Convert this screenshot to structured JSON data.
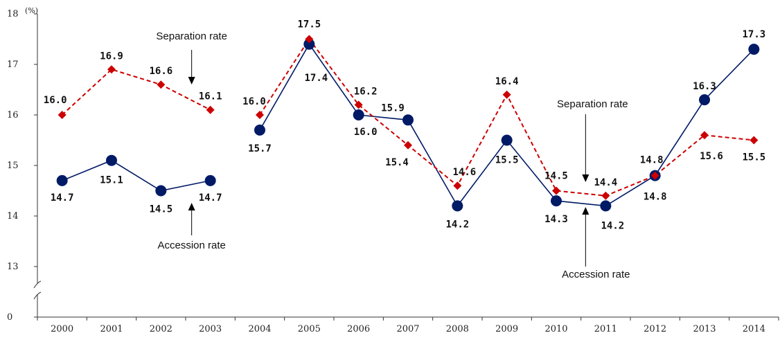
{
  "chart_data": {
    "type": "line",
    "y_unit": "(%)",
    "categories": [
      "2000",
      "2001",
      "2002",
      "2003",
      "2004",
      "2005",
      "2006",
      "2007",
      "2008",
      "2009",
      "2010",
      "2011",
      "2012",
      "2013",
      "2014"
    ],
    "y_ticks": [
      "0",
      "13",
      "14",
      "15",
      "16",
      "17",
      "18"
    ],
    "ylim": [
      13,
      18
    ],
    "y_axis_break": true,
    "grid": false,
    "segment_gap_after": "2003",
    "series": [
      {
        "key": "separation",
        "style": "dashed",
        "marker": "diamond",
        "color": "#cc0000",
        "values": [
          16.0,
          16.9,
          16.6,
          16.1,
          16.0,
          17.5,
          16.2,
          15.4,
          14.6,
          16.4,
          14.5,
          14.4,
          14.8,
          15.6,
          15.5
        ],
        "labels": [
          "16.0",
          "16.9",
          "16.6",
          "16.1",
          "16.0",
          "17.5",
          "16.2",
          "15.4",
          "14.6",
          "16.4",
          "14.5",
          "14.4",
          "",
          "15.6",
          "15.5"
        ]
      },
      {
        "key": "accession",
        "style": "solid",
        "marker": "circle",
        "color": "#001a66",
        "values": [
          14.7,
          15.1,
          14.5,
          14.7,
          15.7,
          17.4,
          16.0,
          15.9,
          14.2,
          15.5,
          14.3,
          14.2,
          14.8,
          16.3,
          17.3
        ],
        "labels": [
          "14.7",
          "15.1",
          "14.5",
          "14.7",
          "15.7",
          "17.4",
          "16.0",
          "15.9",
          "14.2",
          "15.5",
          "14.3",
          "14.2",
          "14.8",
          "16.3",
          "17.3"
        ]
      }
    ],
    "annotations": [
      {
        "text": "Separation rate",
        "points_to": "2003"
      },
      {
        "text": "Accession rate",
        "points_to": "2003"
      },
      {
        "text": "Separation rate",
        "points_to": "2011"
      },
      {
        "text": "Accession rate",
        "points_to": "2011"
      }
    ],
    "extra_labels": [
      "14.8"
    ]
  }
}
